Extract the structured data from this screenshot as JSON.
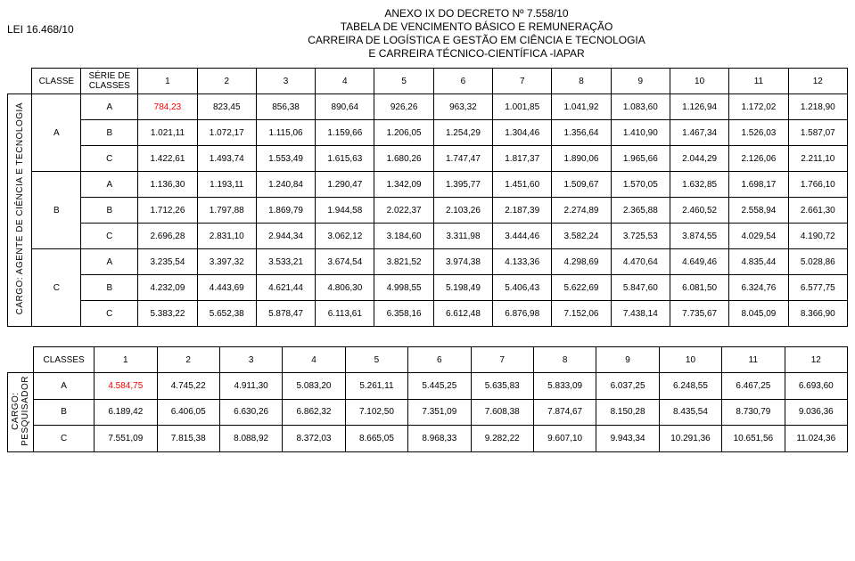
{
  "header": {
    "lei": "LEI 16.468/10",
    "line1": "ANEXO IX DO DECRETO Nº 7.558/10",
    "line2": "TABELA DE VENCIMENTO BÁSICO E REMUNERAÇÃO",
    "line3": "CARREIRA DE LOGÍSTICA E GESTÃO EM CIÊNCIA E TECNOLOGIA",
    "line4": "E CARREIRA TÉCNICO-CIENTÍFICA -IAPAR"
  },
  "t1": {
    "side": "CARGO: AGENTE DE CIÊNCIA E TECNOLOGIA",
    "h_classe": "CLASSE",
    "h_serie_l1": "SÉRIE DE",
    "h_serie_l2": "CLASSES",
    "cols": [
      "1",
      "2",
      "3",
      "4",
      "5",
      "6",
      "7",
      "8",
      "9",
      "10",
      "11",
      "12"
    ],
    "classes": [
      "A",
      "B",
      "C"
    ],
    "series": [
      "A",
      "B",
      "C"
    ],
    "rows": [
      [
        "784,23",
        "823,45",
        "856,38",
        "890,64",
        "926,26",
        "963,32",
        "1.001,85",
        "1.041,92",
        "1.083,60",
        "1.126,94",
        "1.172,02",
        "1.218,90"
      ],
      [
        "1.021,11",
        "1.072,17",
        "1.115,06",
        "1.159,66",
        "1.206,05",
        "1.254,29",
        "1.304,46",
        "1.356,64",
        "1.410,90",
        "1.467,34",
        "1.526,03",
        "1.587,07"
      ],
      [
        "1.422,61",
        "1.493,74",
        "1.553,49",
        "1.615,63",
        "1.680,26",
        "1.747,47",
        "1.817,37",
        "1.890,06",
        "1.965,66",
        "2.044,29",
        "2.126,06",
        "2.211,10"
      ],
      [
        "1.136,30",
        "1.193,11",
        "1.240,84",
        "1.290,47",
        "1.342,09",
        "1.395,77",
        "1.451,60",
        "1.509,67",
        "1.570,05",
        "1.632,85",
        "1.698,17",
        "1.766,10"
      ],
      [
        "1.712,26",
        "1.797,88",
        "1.869,79",
        "1.944,58",
        "2.022,37",
        "2.103,26",
        "2.187,39",
        "2.274,89",
        "2.365,88",
        "2.460,52",
        "2.558,94",
        "2.661,30"
      ],
      [
        "2.696,28",
        "2.831,10",
        "2.944,34",
        "3.062,12",
        "3.184,60",
        "3.311,98",
        "3.444,46",
        "3.582,24",
        "3.725,53",
        "3.874,55",
        "4.029,54",
        "4.190,72"
      ],
      [
        "3.235,54",
        "3.397,32",
        "3.533,21",
        "3.674,54",
        "3.821,52",
        "3.974,38",
        "4.133,36",
        "4.298,69",
        "4.470,64",
        "4.649,46",
        "4.835,44",
        "5.028,86"
      ],
      [
        "4.232,09",
        "4.443,69",
        "4.621,44",
        "4.806,30",
        "4.998,55",
        "5.198,49",
        "5.406,43",
        "5.622,69",
        "5.847,60",
        "6.081,50",
        "6.324,76",
        "6.577,75"
      ],
      [
        "5.383,22",
        "5.652,38",
        "5.878,47",
        "6.113,61",
        "6.358,16",
        "6.612,48",
        "6.876,98",
        "7.152,06",
        "7.438,14",
        "7.735,67",
        "8.045,09",
        "8.366,90"
      ]
    ],
    "red_cell": {
      "row": 0,
      "col": 0
    }
  },
  "t2": {
    "side_l1": "CARGO:",
    "side_l2": "PESQUISADOR",
    "h_classes": "CLASSES",
    "cols": [
      "1",
      "2",
      "3",
      "4",
      "5",
      "6",
      "7",
      "8",
      "9",
      "10",
      "11",
      "12"
    ],
    "classes": [
      "A",
      "B",
      "C"
    ],
    "rows": [
      [
        "4.584,75",
        "4.745,22",
        "4.911,30",
        "5.083,20",
        "5.261,11",
        "5.445,25",
        "5.635,83",
        "5.833,09",
        "6.037,25",
        "6.248,55",
        "6.467,25",
        "6.693,60"
      ],
      [
        "6.189,42",
        "6.406,05",
        "6.630,26",
        "6.862,32",
        "7.102,50",
        "7.351,09",
        "7.608,38",
        "7.874,67",
        "8.150,28",
        "8.435,54",
        "8.730,79",
        "9.036,36"
      ],
      [
        "7.551,09",
        "7.815,38",
        "8.088,92",
        "8.372,03",
        "8.665,05",
        "8.968,33",
        "9.282,22",
        "9.607,10",
        "9.943,34",
        "10.291,36",
        "10.651,56",
        "11.024,36"
      ]
    ],
    "red_cell": {
      "row": 0,
      "col": 0
    }
  }
}
